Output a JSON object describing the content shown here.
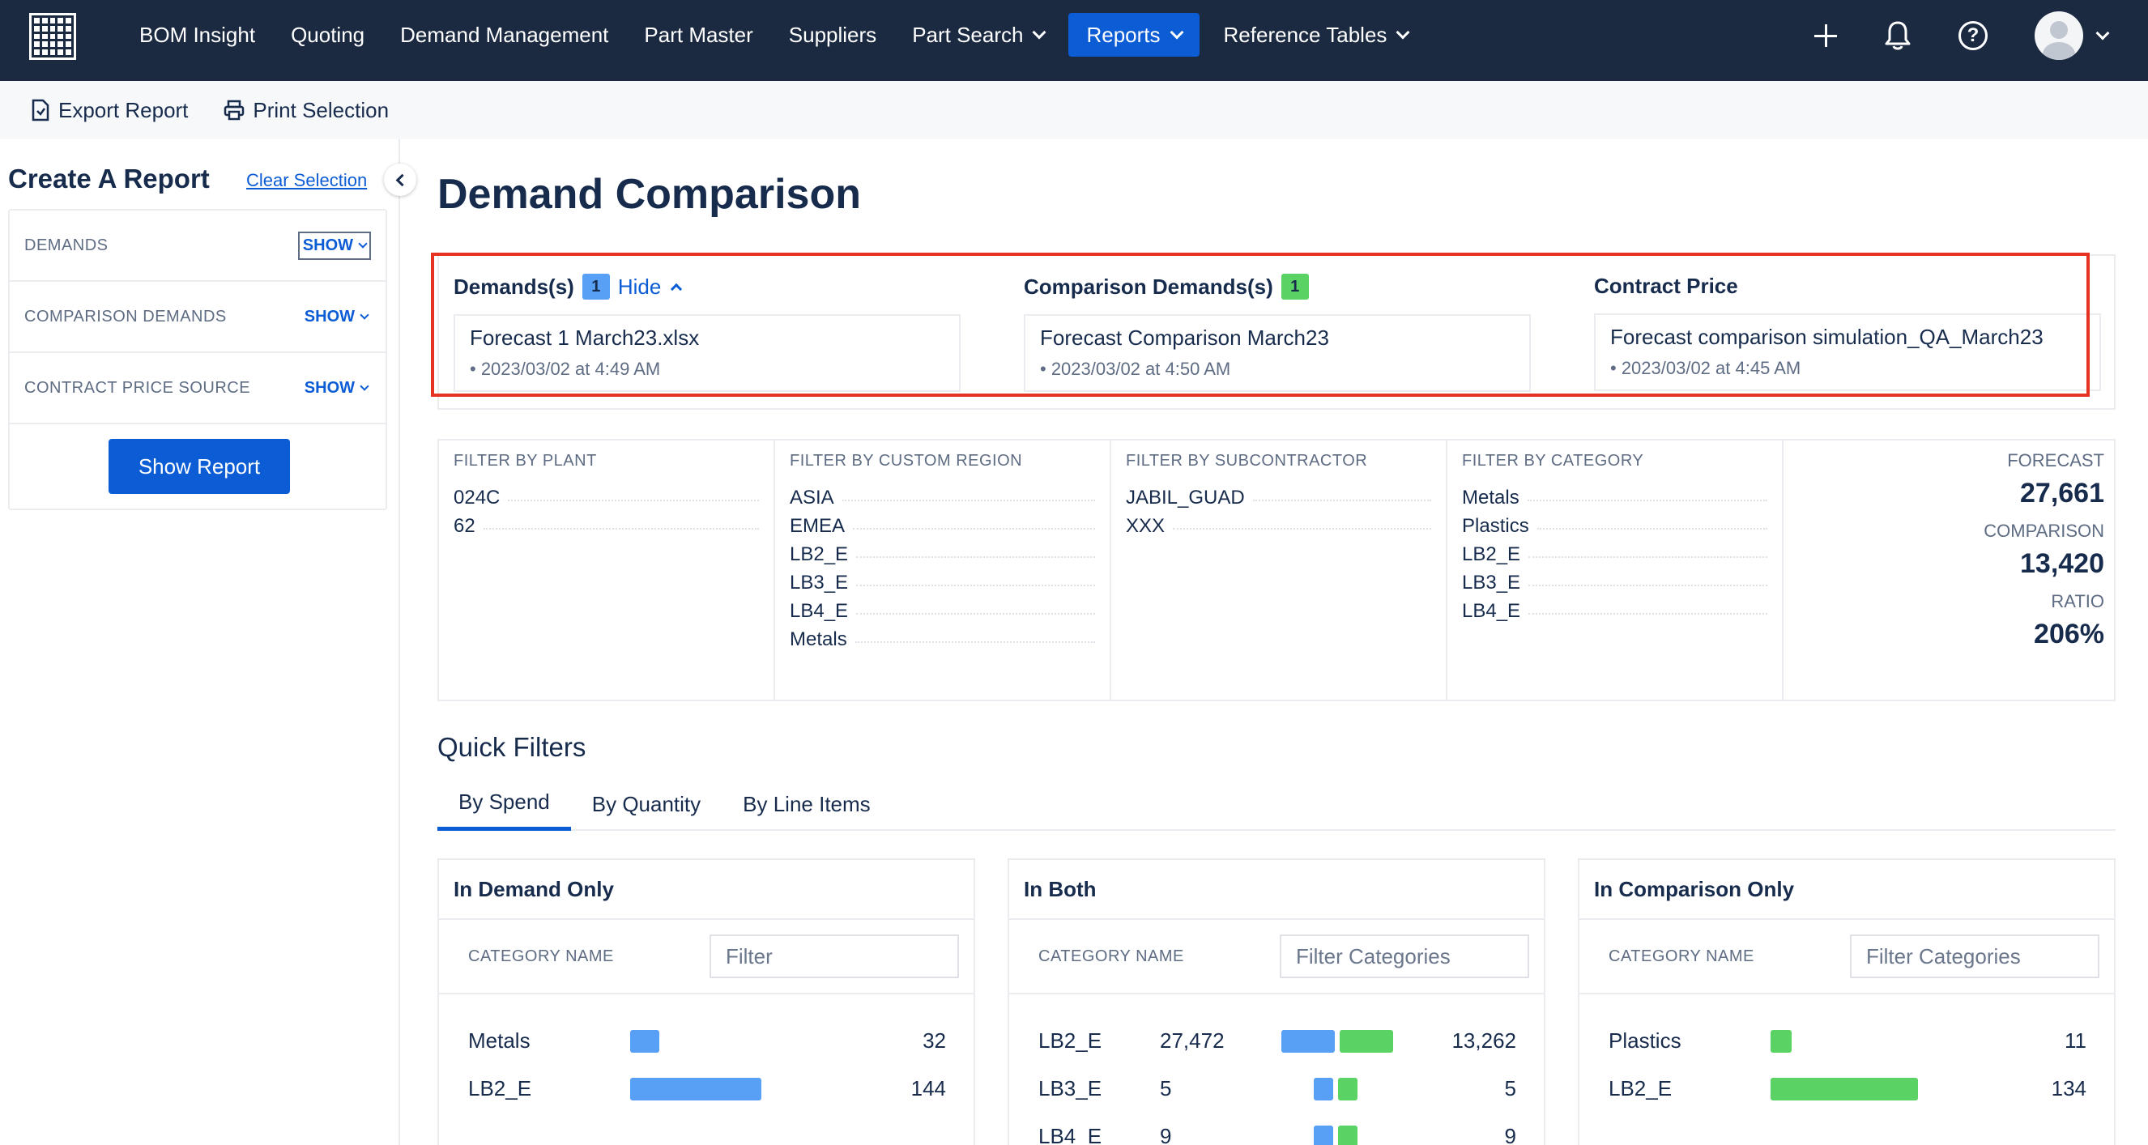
{
  "nav": {
    "items": [
      {
        "label": "BOM Insight"
      },
      {
        "label": "Quoting"
      },
      {
        "label": "Demand Management"
      },
      {
        "label": "Part Master"
      },
      {
        "label": "Suppliers"
      },
      {
        "label": "Part Search"
      },
      {
        "label": "Reports"
      },
      {
        "label": "Reference Tables"
      }
    ],
    "active": "Reports",
    "accent_color": "#0b5cd5",
    "bg_color": "#1b2a41"
  },
  "toolbar": {
    "export_label": "Export Report",
    "print_label": "Print Selection"
  },
  "sidebar": {
    "title": "Create A Report",
    "clear_label": "Clear Selection",
    "rows": [
      {
        "label": "DEMANDS",
        "action": "SHOW"
      },
      {
        "label": "COMPARISON DEMANDS",
        "action": "SHOW"
      },
      {
        "label": "CONTRACT PRICE SOURCE",
        "action": "SHOW"
      }
    ],
    "show_report_label": "Show Report"
  },
  "page": {
    "title": "Demand Comparison"
  },
  "selection": {
    "demands": {
      "heading": "Demands(s)",
      "count": "1",
      "hide_label": "Hide",
      "name": "Forecast 1 March23.xlsx",
      "date": "• 2023/03/02 at 4:49 AM"
    },
    "comparison": {
      "heading": "Comparison Demands(s)",
      "count": "1",
      "name": "Forecast Comparison March23",
      "date": "• 2023/03/02 at 4:50 AM"
    },
    "contract": {
      "heading": "Contract Price",
      "name": "Forecast comparison simulation_QA_March23",
      "date": "• 2023/03/02 at 4:45 AM"
    }
  },
  "filters": {
    "plant": {
      "heading": "FILTER BY PLANT",
      "items": [
        "024C",
        "62"
      ]
    },
    "region": {
      "heading": "FILTER BY CUSTOM REGION",
      "items": [
        "ASIA",
        "EMEA",
        "LB2_E",
        "LB3_E",
        "LB4_E",
        "Metals"
      ]
    },
    "subcontractor": {
      "heading": "FILTER BY SUBCONTRACTOR",
      "items": [
        "JABIL_GUAD",
        "XXX"
      ]
    },
    "category": {
      "heading": "FILTER BY CATEGORY",
      "items": [
        "Metals",
        "Plastics",
        "LB2_E",
        "LB3_E",
        "LB4_E"
      ]
    }
  },
  "stats": {
    "forecast_label": "FORECAST",
    "forecast_value": "27,661",
    "comparison_label": "COMPARISON",
    "comparison_value": "13,420",
    "ratio_label": "RATIO",
    "ratio_value": "206%"
  },
  "quick_filters": {
    "title": "Quick Filters",
    "tabs": [
      "By Spend",
      "By Quantity",
      "By Line Items"
    ],
    "active_tab": "By Spend",
    "demand_only": {
      "title": "In Demand Only",
      "col_label": "CATEGORY NAME",
      "placeholder": "Filter",
      "rows": [
        {
          "name": "Metals",
          "value": "32"
        },
        {
          "name": "LB2_E",
          "value": "144"
        }
      ]
    },
    "both": {
      "title": "In Both",
      "col_label": "CATEGORY NAME",
      "placeholder": "Filter Categories",
      "rows": [
        {
          "name": "LB2_E",
          "left": "27,472",
          "right": "13,262"
        },
        {
          "name": "LB3_E",
          "left": "5",
          "right": "5"
        },
        {
          "name": "LB4_E",
          "left": "9",
          "right": "9"
        }
      ]
    },
    "comparison_only": {
      "title": "In Comparison Only",
      "col_label": "CATEGORY NAME",
      "placeholder": "Filter Categories",
      "rows": [
        {
          "name": "Plastics",
          "value": "11"
        },
        {
          "name": "LB2_E",
          "value": "134"
        }
      ]
    },
    "colors": {
      "demand": "#57a0f5",
      "comparison": "#5ad264"
    }
  }
}
